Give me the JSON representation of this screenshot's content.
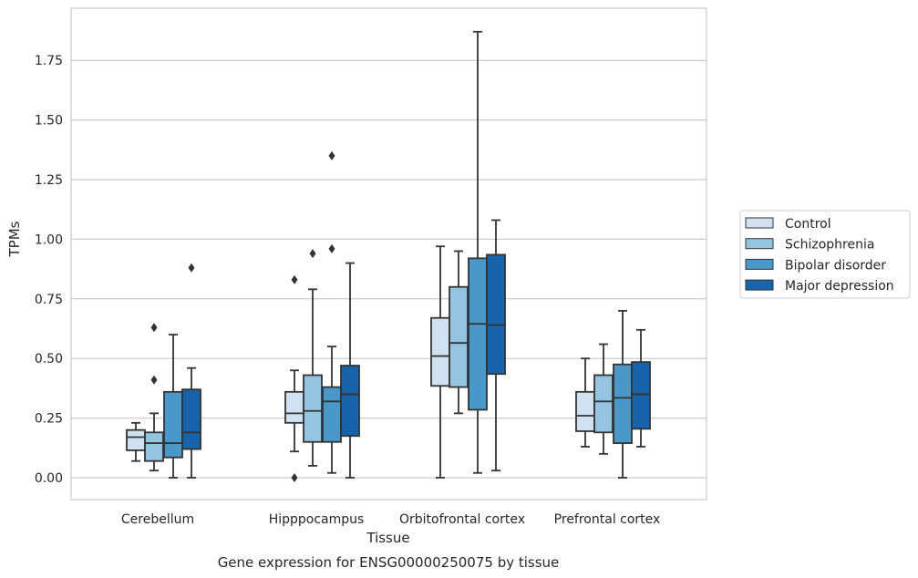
{
  "chart_data": {
    "type": "box",
    "xlabel": "Tissue",
    "ylabel": "TPMs",
    "caption": "Gene expression for ENSG00000250075 by tissue",
    "categories": [
      "Cerebellum",
      "Hipppocampus",
      "Orbitofrontal cortex",
      "Prefrontal cortex"
    ],
    "ylim": [
      -0.09,
      1.965
    ],
    "yticks": [
      0.0,
      0.25,
      0.5,
      0.75,
      1.0,
      1.25,
      1.5,
      1.75
    ],
    "ytick_labels": [
      "0.00",
      "0.25",
      "0.50",
      "0.75",
      "1.00",
      "1.25",
      "1.50",
      "1.75"
    ],
    "grid": true,
    "legend_position": "right",
    "series": [
      {
        "name": "Control",
        "color": "#d0e1f2",
        "boxes": [
          {
            "whislo": 0.07,
            "q1": 0.115,
            "med": 0.17,
            "q3": 0.2,
            "whishi": 0.23,
            "fliers": []
          },
          {
            "whislo": 0.11,
            "q1": 0.23,
            "med": 0.27,
            "q3": 0.36,
            "whishi": 0.45,
            "fliers": [
              0.0,
              0.83
            ]
          },
          {
            "whislo": 0.0,
            "q1": 0.385,
            "med": 0.51,
            "q3": 0.67,
            "whishi": 0.97,
            "fliers": []
          },
          {
            "whislo": 0.13,
            "q1": 0.195,
            "med": 0.26,
            "q3": 0.36,
            "whishi": 0.5,
            "fliers": []
          }
        ]
      },
      {
        "name": "Schizophrenia",
        "color": "#94c4df",
        "boxes": [
          {
            "whislo": 0.03,
            "q1": 0.07,
            "med": 0.145,
            "q3": 0.19,
            "whishi": 0.27,
            "fliers": [
              0.41,
              0.63
            ]
          },
          {
            "whislo": 0.05,
            "q1": 0.15,
            "med": 0.28,
            "q3": 0.43,
            "whishi": 0.79,
            "fliers": [
              0.94
            ]
          },
          {
            "whislo": 0.27,
            "q1": 0.38,
            "med": 0.565,
            "q3": 0.8,
            "whishi": 0.95,
            "fliers": []
          },
          {
            "whislo": 0.1,
            "q1": 0.19,
            "med": 0.32,
            "q3": 0.43,
            "whishi": 0.56,
            "fliers": []
          }
        ]
      },
      {
        "name": "Bipolar disorder",
        "color": "#4a98c9",
        "boxes": [
          {
            "whislo": 0.0,
            "q1": 0.085,
            "med": 0.145,
            "q3": 0.36,
            "whishi": 0.6,
            "fliers": []
          },
          {
            "whislo": 0.02,
            "q1": 0.15,
            "med": 0.32,
            "q3": 0.38,
            "whishi": 0.55,
            "fliers": [
              0.96,
              1.35
            ]
          },
          {
            "whislo": 0.02,
            "q1": 0.285,
            "med": 0.645,
            "q3": 0.92,
            "whishi": 1.87,
            "fliers": []
          },
          {
            "whislo": 0.0,
            "q1": 0.145,
            "med": 0.335,
            "q3": 0.475,
            "whishi": 0.7,
            "fliers": []
          }
        ]
      },
      {
        "name": "Major depression",
        "color": "#1764ab",
        "boxes": [
          {
            "whislo": 0.0,
            "q1": 0.12,
            "med": 0.19,
            "q3": 0.37,
            "whishi": 0.46,
            "fliers": [
              0.88
            ]
          },
          {
            "whislo": 0.0,
            "q1": 0.175,
            "med": 0.35,
            "q3": 0.47,
            "whishi": 0.9,
            "fliers": []
          },
          {
            "whislo": 0.03,
            "q1": 0.435,
            "med": 0.64,
            "q3": 0.935,
            "whishi": 1.08,
            "fliers": []
          },
          {
            "whislo": 0.13,
            "q1": 0.205,
            "med": 0.35,
            "q3": 0.485,
            "whishi": 0.62,
            "fliers": []
          }
        ]
      }
    ]
  }
}
